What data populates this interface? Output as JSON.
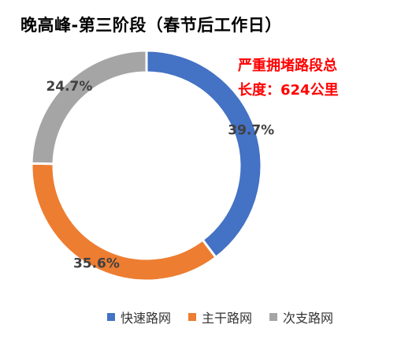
{
  "title": "晚高峰-第三阶段（春节后工作日）",
  "annotation": {
    "line1": "严重拥堵路段总",
    "line2": "长度：624公里"
  },
  "chart_data": {
    "type": "pie",
    "variant": "donut",
    "categories": [
      "快速路网",
      "主干路网",
      "次支路网"
    ],
    "values": [
      39.7,
      35.6,
      24.7
    ],
    "labels": [
      "39.7%",
      "35.6%",
      "24.7%"
    ],
    "colors": [
      "#4472c4",
      "#ed7d31",
      "#a5a5a5"
    ],
    "legend_position": "bottom"
  }
}
